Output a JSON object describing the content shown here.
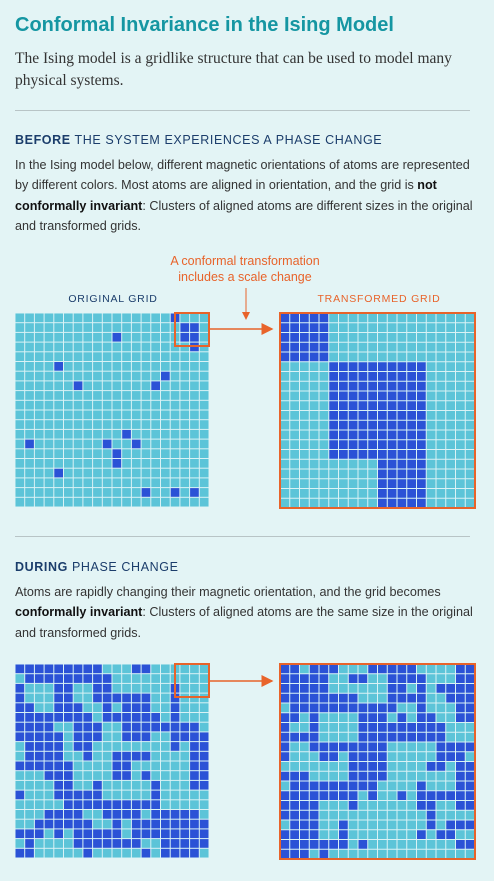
{
  "header": {
    "title": "Conformal Invariance in the Ising Model",
    "subtitle": "The Ising model is a gridlike structure that can be used to model many physical systems."
  },
  "before": {
    "heading_bold": "BEFORE",
    "heading_rest": "THE SYSTEM EXPERIENCES A PHASE CHANGE",
    "text_before": "In the Ising model below, different magnetic orientations of atoms are represented by different colors. Most atoms are aligned in orientation, and the grid is",
    "text_bold": "not conformally invariant",
    "text_after": ": Clusters of aligned atoms are different sizes in the original and transformed grids.",
    "annotation": [
      "A conformal transformation",
      "includes a scale change"
    ],
    "original_label": "ORIGINAL GRID",
    "transformed_label": "TRANSFORMED GRID"
  },
  "during": {
    "heading_bold": "DURING",
    "heading_rest": "PHASE CHANGE",
    "text_before": "Atoms are rapidly changing their magnetic orientation, and the grid becomes",
    "text_bold": "conformally invariant",
    "text_after": ": Clusters of aligned atoms are the same size in the original and transformed grids."
  }
}
